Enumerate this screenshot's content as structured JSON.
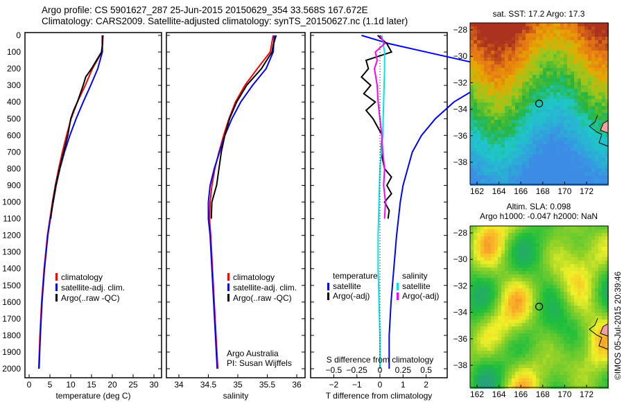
{
  "header": {
    "line1": "Argo profile: CS 5901627_287 25-Jun-2015 20150629_354 33.568S 167.672E",
    "line2": "Climatology: CARS2009. Satellite-adjusted climatology: synTS_20150627.nc (1.1d later)"
  },
  "credit": "©IMOS 05-Jul-2015 20:39:46",
  "colors": {
    "clim": "#ff0000",
    "sat": "#0000ff",
    "argo": "#000000",
    "ssat": "#00e5e5",
    "sargo": "#ff00ff"
  },
  "chart_data": [
    {
      "type": "line",
      "id": "temperature",
      "xlabel": "temperature (deg C)",
      "ylabel": "depth",
      "xlim": [
        -1,
        31.5
      ],
      "ylim": [
        2070,
        0
      ],
      "xticks": [
        0,
        5,
        10,
        15,
        20,
        25,
        30
      ],
      "yticks": [
        0,
        100,
        200,
        300,
        400,
        500,
        600,
        700,
        800,
        900,
        1000,
        1100,
        1200,
        1300,
        1400,
        1500,
        1600,
        1700,
        1800,
        1900,
        2000
      ],
      "legend": [
        "climatology",
        "satellite-adj. clim.",
        "Argo(..raw -QC)"
      ],
      "series": [
        {
          "name": "climatology",
          "color": "clim",
          "depth": [
            0,
            100,
            200,
            300,
            400,
            500,
            600,
            700,
            800,
            900,
            1000,
            1100,
            1200,
            1400,
            1600,
            1800,
            2000
          ],
          "values": [
            17.8,
            17.5,
            15.2,
            13.5,
            11.6,
            10.1,
            9.0,
            8.0,
            7.1,
            6.3,
            5.6,
            5.0,
            4.4,
            3.6,
            3.0,
            2.6,
            2.3
          ]
        },
        {
          "name": "satellite-adj. clim.",
          "color": "sat",
          "depth": [
            0,
            100,
            200,
            300,
            400,
            500,
            600,
            700,
            800,
            900,
            1000,
            1100,
            1200,
            1400,
            1600,
            1800,
            2000
          ],
          "values": [
            17.6,
            17.6,
            16.5,
            14.8,
            13.0,
            11.3,
            9.8,
            8.5,
            7.4,
            6.5,
            5.8,
            5.1,
            4.5,
            3.7,
            3.1,
            2.7,
            2.4
          ]
        },
        {
          "name": "Argo(..raw -QC)",
          "color": "argo",
          "depth": [
            0,
            60,
            100,
            150,
            200,
            250,
            300,
            400,
            450,
            500,
            600,
            700,
            800,
            900,
            1000,
            1100
          ],
          "values": [
            17.6,
            17.6,
            17.4,
            16.2,
            15.0,
            13.6,
            13.0,
            11.6,
            10.7,
            10.0,
            9.3,
            8.3,
            7.3,
            6.4,
            5.7,
            5.2
          ]
        }
      ]
    },
    {
      "type": "line",
      "id": "salinity",
      "xlabel": "salinity",
      "ylim": [
        2070,
        0
      ],
      "xlim": [
        33.75,
        36.1
      ],
      "xticks": [
        34,
        34.5,
        35,
        35.5,
        36
      ],
      "legend": [
        "climatology",
        "satellite-adj. clim.",
        "Argo(..raw -QC)"
      ],
      "annotation": [
        "Argo Australia",
        "PI: Susan Wijffels"
      ],
      "series": [
        {
          "name": "climatology",
          "color": "clim",
          "depth": [
            0,
            100,
            200,
            300,
            400,
            500,
            600,
            700,
            800,
            900,
            1000,
            1100,
            1200,
            1400,
            1600,
            1800,
            2000
          ],
          "values": [
            35.6,
            35.55,
            35.33,
            35.12,
            34.96,
            34.85,
            34.76,
            34.68,
            34.61,
            34.56,
            34.53,
            34.52,
            34.54,
            34.57,
            34.6,
            34.63,
            34.66
          ]
        },
        {
          "name": "satellite-adj. clim.",
          "color": "sat",
          "depth": [
            0,
            100,
            200,
            300,
            400,
            500,
            600,
            700,
            800,
            900,
            1000,
            1100,
            1200,
            1400,
            1600,
            1800,
            2000
          ],
          "values": [
            35.62,
            35.6,
            35.48,
            35.25,
            35.05,
            34.9,
            34.78,
            34.69,
            34.6,
            34.53,
            34.5,
            34.5,
            34.53,
            34.56,
            34.59,
            34.62,
            34.65
          ]
        },
        {
          "name": "Argo(..raw -QC)",
          "color": "argo",
          "depth": [
            0,
            60,
            100,
            200,
            300,
            400,
            500,
            600,
            700,
            800,
            900,
            1000,
            1100
          ],
          "values": [
            35.65,
            35.6,
            35.58,
            35.4,
            35.15,
            34.98,
            34.86,
            34.78,
            34.72,
            34.68,
            34.64,
            34.56,
            34.55
          ]
        }
      ]
    },
    {
      "type": "line",
      "id": "difference",
      "xlabel": "T difference from climatology",
      "x2label": "S difference from climatology",
      "xlim": [
        -3,
        3
      ],
      "ylim": [
        2070,
        0
      ],
      "xticks": [
        -2,
        -1,
        0,
        1,
        2
      ],
      "x2ticks": [
        -0.5,
        -0.25,
        0,
        0.25,
        0.5
      ],
      "legend": {
        "temperature": "temperature",
        "salinity": "salinity",
        "sat": "satellite",
        "argo": "Argo(-adj)"
      },
      "series": [
        {
          "name": "T satellite",
          "color": "sat",
          "depth": [
            0,
            50,
            100,
            150,
            200,
            300,
            400,
            500,
            600,
            700,
            800,
            900,
            1000,
            1200,
            1400,
            1600,
            1800,
            2000
          ],
          "values": [
            -0.2,
            0.1,
            0.5,
            0.9,
            1.3,
            1.1,
            0.8,
            0.6,
            0.45,
            0.35,
            0.3,
            0.25,
            0.22,
            0.18,
            0.15,
            0.12,
            0.1,
            0.1
          ]
        },
        {
          "name": "T Argo(-adj)",
          "color": "argo",
          "depth": [
            0,
            50,
            100,
            150,
            200,
            250,
            300,
            350,
            400,
            450,
            500,
            550,
            600,
            700,
            800,
            850,
            900,
            950,
            1000,
            1050,
            1100
          ],
          "values": [
            -0.1,
            0.3,
            0.5,
            -0.6,
            -0.5,
            -0.8,
            -0.4,
            -0.7,
            -0.2,
            -0.6,
            -0.3,
            -0.1,
            0.1,
            0.05,
            0.2,
            0.5,
            0.3,
            0.5,
            0.2,
            0.4,
            0.35
          ]
        },
        {
          "name": "S satellite",
          "color": "ssat",
          "depth": [
            0,
            100,
            200,
            400,
            600,
            800,
            1000,
            1200,
            1400,
            1600,
            1800,
            2000
          ],
          "values": [
            0.02,
            0.05,
            0.05,
            0.04,
            0.03,
            0.0,
            -0.01,
            -0.02,
            -0.02,
            -0.01,
            0.0,
            0.0
          ]
        },
        {
          "name": "S Argo(-adj)",
          "color": "sargo",
          "depth": [
            0,
            50,
            100,
            150,
            200,
            300,
            400,
            500,
            600,
            700,
            800,
            900,
            1000,
            1100
          ],
          "values": [
            0.0,
            0.05,
            -0.05,
            -0.03,
            -0.06,
            -0.03,
            -0.02,
            0.0,
            0.02,
            0.03,
            0.05,
            0.04,
            0.06,
            0.05
          ]
        }
      ]
    },
    {
      "type": "heatmap",
      "id": "sst-map",
      "title": "sat. SST: 17.2 Argo: 17.3",
      "xticks": [
        162,
        164,
        166,
        168,
        170,
        172
      ],
      "yticks": [
        -28,
        -30,
        -32,
        -34,
        -36,
        -38
      ],
      "xlim": [
        161.3,
        173.9
      ],
      "ylim": [
        -39.6,
        -27.3
      ],
      "marker": [
        167.672,
        -33.568
      ]
    },
    {
      "type": "heatmap",
      "id": "sla-map",
      "title": "Altim. SLA: 0.098",
      "subtitle": "Argo h1000: -0.047 h2000: NaN",
      "xticks": [
        162,
        164,
        166,
        168,
        170,
        172
      ],
      "yticks": [
        -28,
        -30,
        -32,
        -34,
        -36,
        -38
      ],
      "xlim": [
        161.3,
        173.9
      ],
      "ylim": [
        -39.6,
        -27.3
      ],
      "marker": [
        167.672,
        -33.568
      ]
    }
  ]
}
